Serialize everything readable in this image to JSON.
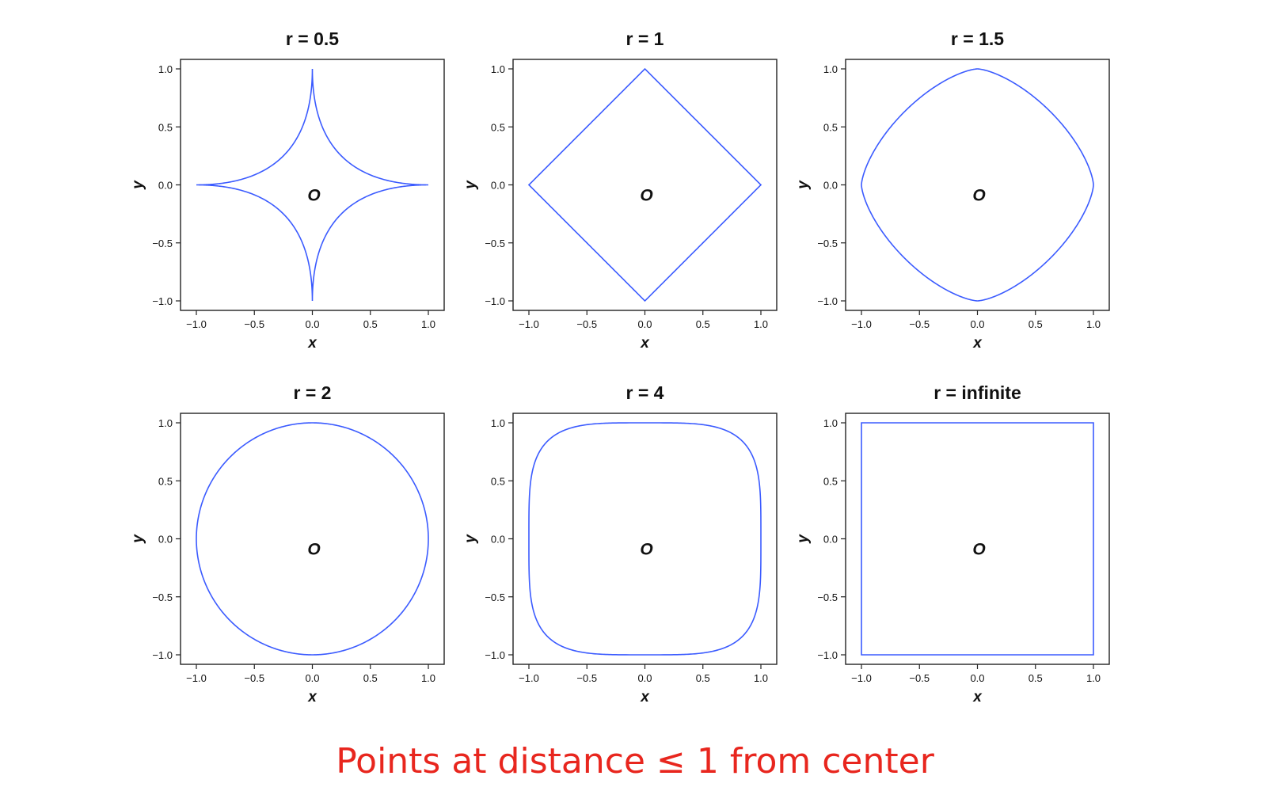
{
  "caption": {
    "text_before": "Points at distance",
    "relation_symbol": "≤",
    "text_after": "1 from center",
    "color": "#e8261e"
  },
  "chart_data": [
    {
      "type": "line",
      "title": "r = 0.5",
      "r": 0.5,
      "xlabel": "x",
      "ylabel": "y",
      "xlim": [
        -1.0,
        1.0
      ],
      "ylim": [
        -1.0,
        1.0
      ],
      "xticks": [
        "−1.0",
        "−0.5",
        "0.0",
        "0.5",
        "1.0"
      ],
      "yticks": [
        "−1.0",
        "−0.5",
        "0.0",
        "0.5",
        "1.0"
      ],
      "annotation": "O",
      "annotation_point": [
        0,
        0
      ],
      "curve": "unit ball |x|^r + |y|^r = 1",
      "color": "#3b5bff"
    },
    {
      "type": "line",
      "title": "r = 1",
      "r": 1,
      "xlabel": "x",
      "ylabel": "y",
      "xlim": [
        -1.0,
        1.0
      ],
      "ylim": [
        -1.0,
        1.0
      ],
      "xticks": [
        "−1.0",
        "−0.5",
        "0.0",
        "0.5",
        "1.0"
      ],
      "yticks": [
        "−1.0",
        "−0.5",
        "0.0",
        "0.5",
        "1.0"
      ],
      "annotation": "O",
      "annotation_point": [
        0,
        0
      ],
      "curve": "unit ball |x|^r + |y|^r = 1",
      "color": "#3b5bff"
    },
    {
      "type": "line",
      "title": "r = 1.5",
      "r": 1.5,
      "xlabel": "x",
      "ylabel": "y",
      "xlim": [
        -1.0,
        1.0
      ],
      "ylim": [
        -1.0,
        1.0
      ],
      "xticks": [
        "−1.0",
        "−0.5",
        "0.0",
        "0.5",
        "1.0"
      ],
      "yticks": [
        "−1.0",
        "−0.5",
        "0.0",
        "0.5",
        "1.0"
      ],
      "annotation": "O",
      "annotation_point": [
        0,
        0
      ],
      "curve": "unit ball |x|^r + |y|^r = 1",
      "color": "#3b5bff"
    },
    {
      "type": "line",
      "title": "r = 2",
      "r": 2,
      "xlabel": "x",
      "ylabel": "y",
      "xlim": [
        -1.0,
        1.0
      ],
      "ylim": [
        -1.0,
        1.0
      ],
      "xticks": [
        "−1.0",
        "−0.5",
        "0.0",
        "0.5",
        "1.0"
      ],
      "yticks": [
        "−1.0",
        "−0.5",
        "0.0",
        "0.5",
        "1.0"
      ],
      "annotation": "O",
      "annotation_point": [
        0,
        0
      ],
      "curve": "unit ball |x|^r + |y|^r = 1",
      "color": "#3b5bff"
    },
    {
      "type": "line",
      "title": "r = 4",
      "r": 4,
      "xlabel": "x",
      "ylabel": "y",
      "xlim": [
        -1.0,
        1.0
      ],
      "ylim": [
        -1.0,
        1.0
      ],
      "xticks": [
        "−1.0",
        "−0.5",
        "0.0",
        "0.5",
        "1.0"
      ],
      "yticks": [
        "−1.0",
        "−0.5",
        "0.0",
        "0.5",
        "1.0"
      ],
      "annotation": "O",
      "annotation_point": [
        0,
        0
      ],
      "curve": "unit ball |x|^r + |y|^r = 1",
      "color": "#3b5bff"
    },
    {
      "type": "line",
      "title": "r = infinite",
      "r": "infinite",
      "xlabel": "x",
      "ylabel": "y",
      "xlim": [
        -1.0,
        1.0
      ],
      "ylim": [
        -1.0,
        1.0
      ],
      "xticks": [
        "−1.0",
        "−0.5",
        "0.0",
        "0.5",
        "1.0"
      ],
      "yticks": [
        "−1.0",
        "−0.5",
        "0.0",
        "0.5",
        "1.0"
      ],
      "annotation": "O",
      "annotation_point": [
        0,
        0
      ],
      "curve": "unit ball max(|x|, |y|) = 1",
      "color": "#3b5bff"
    }
  ]
}
